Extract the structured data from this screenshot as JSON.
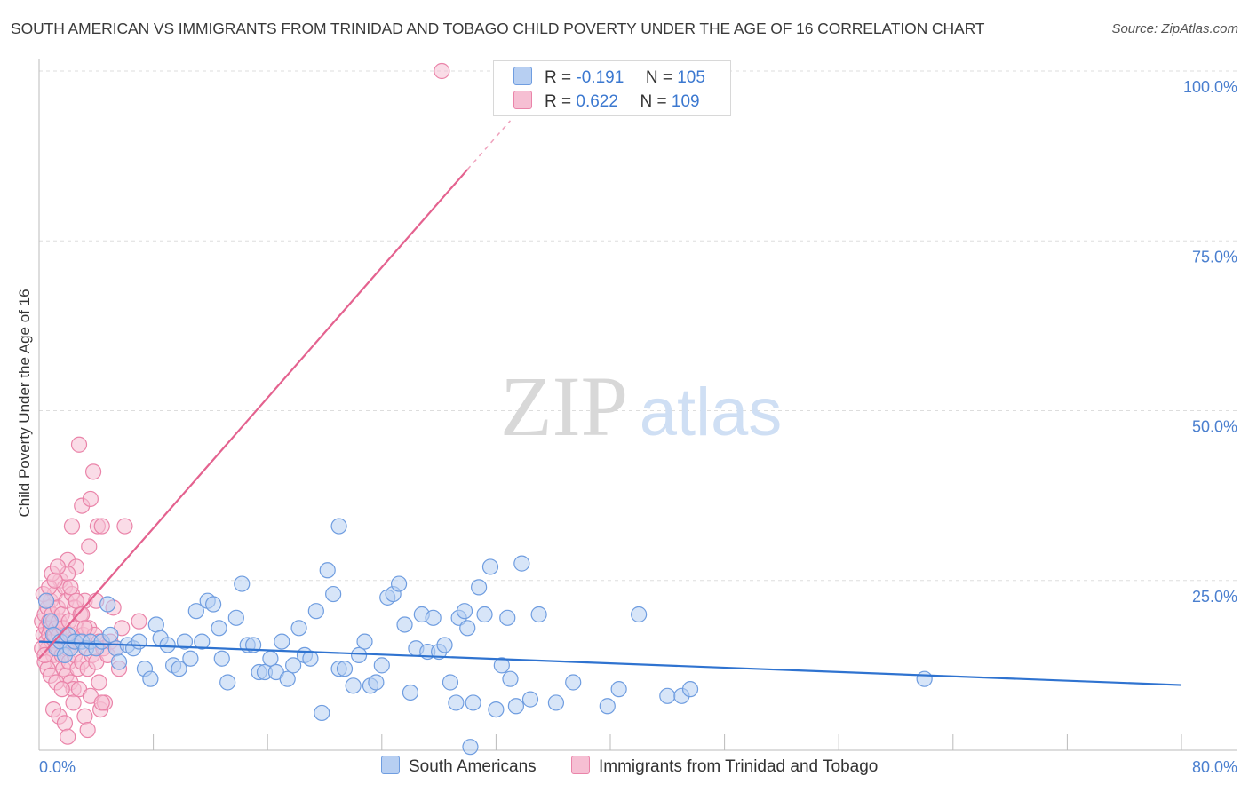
{
  "title": "SOUTH AMERICAN VS IMMIGRANTS FROM TRINIDAD AND TOBAGO CHILD POVERTY UNDER THE AGE OF 16 CORRELATION CHART",
  "source": "Source: ZipAtlas.com",
  "watermark": {
    "zip": "ZIP",
    "atlas": "atlas"
  },
  "legend": {
    "r_label": "R =",
    "n_label": "N =",
    "rows": [
      {
        "r": "-0.191",
        "n": "105"
      },
      {
        "r": "0.622",
        "n": "109"
      }
    ]
  },
  "colors": {
    "blue_fill": "#b7cff2",
    "blue_stroke": "#6f9de0",
    "blue_line": "#2f73d0",
    "pink_fill": "#f6bfd3",
    "pink_stroke": "#ea84a9",
    "pink_line": "#e4628f",
    "axis_text": "#4a7fcf",
    "grid": "#dddddd"
  },
  "chart_data": {
    "type": "scatter",
    "title": "SOUTH AMERICAN VS IMMIGRANTS FROM TRINIDAD AND TOBAGO CHILD POVERTY UNDER THE AGE OF 16 CORRELATION CHART",
    "xlabel": "",
    "ylabel": "Child Poverty Under the Age of 16",
    "xlim": [
      0,
      80
    ],
    "ylim": [
      0,
      100
    ],
    "x_tick_labels": [
      "0.0%",
      "80.0%"
    ],
    "y_ticks": [
      {
        "value": 25,
        "label": "25.0%"
      },
      {
        "value": 50,
        "label": "50.0%"
      },
      {
        "value": 75,
        "label": "75.0%"
      },
      {
        "value": 100,
        "label": "100.0%"
      }
    ],
    "series": [
      {
        "name": "South Americans",
        "r": -0.191,
        "n": 105,
        "trend": {
          "x0": 0,
          "y0": 16.0,
          "x1": 80,
          "y1": 9.6
        },
        "points": [
          [
            0.5,
            22
          ],
          [
            0.8,
            19
          ],
          [
            1.0,
            17
          ],
          [
            1.2,
            15
          ],
          [
            1.5,
            16
          ],
          [
            1.8,
            14
          ],
          [
            2.0,
            17
          ],
          [
            2.2,
            15
          ],
          [
            2.5,
            16
          ],
          [
            3.0,
            16
          ],
          [
            3.3,
            15
          ],
          [
            3.6,
            16
          ],
          [
            4.0,
            15
          ],
          [
            4.4,
            16
          ],
          [
            4.8,
            21.5
          ],
          [
            5.0,
            17
          ],
          [
            5.4,
            15
          ],
          [
            5.6,
            13
          ],
          [
            6.2,
            15.5
          ],
          [
            6.6,
            15
          ],
          [
            7.0,
            16
          ],
          [
            7.4,
            12
          ],
          [
            7.8,
            10.5
          ],
          [
            8.2,
            18.5
          ],
          [
            8.5,
            16.5
          ],
          [
            9.0,
            15.5
          ],
          [
            9.4,
            12.5
          ],
          [
            9.8,
            12
          ],
          [
            10.2,
            16
          ],
          [
            10.6,
            13.5
          ],
          [
            11.0,
            20.5
          ],
          [
            11.4,
            16
          ],
          [
            11.8,
            22
          ],
          [
            12.2,
            21.5
          ],
          [
            12.6,
            18
          ],
          [
            12.8,
            13.5
          ],
          [
            13.2,
            10
          ],
          [
            13.8,
            19.5
          ],
          [
            14.2,
            24.5
          ],
          [
            14.6,
            15.5
          ],
          [
            15.0,
            15.5
          ],
          [
            15.4,
            11.5
          ],
          [
            15.8,
            11.5
          ],
          [
            16.2,
            13.5
          ],
          [
            16.6,
            11.5
          ],
          [
            17.0,
            16
          ],
          [
            17.4,
            10.5
          ],
          [
            17.8,
            12.5
          ],
          [
            18.2,
            18
          ],
          [
            18.6,
            14
          ],
          [
            19.0,
            13.5
          ],
          [
            19.4,
            20.5
          ],
          [
            19.8,
            5.5
          ],
          [
            20.2,
            26.5
          ],
          [
            20.6,
            23
          ],
          [
            21.0,
            12
          ],
          [
            21.4,
            12
          ],
          [
            22.0,
            9.5
          ],
          [
            22.4,
            14
          ],
          [
            22.8,
            16
          ],
          [
            23.2,
            9.5
          ],
          [
            23.6,
            10
          ],
          [
            24.0,
            12.5
          ],
          [
            24.4,
            22.5
          ],
          [
            24.8,
            23
          ],
          [
            25.2,
            24.5
          ],
          [
            25.6,
            18.5
          ],
          [
            26.0,
            8.5
          ],
          [
            26.4,
            15
          ],
          [
            26.8,
            20
          ],
          [
            27.2,
            14.5
          ],
          [
            27.6,
            19.5
          ],
          [
            28.0,
            14.5
          ],
          [
            28.4,
            15.5
          ],
          [
            28.8,
            10
          ],
          [
            29.2,
            7
          ],
          [
            29.4,
            19.5
          ],
          [
            29.8,
            20.5
          ],
          [
            30.0,
            18
          ],
          [
            30.4,
            7
          ],
          [
            30.8,
            24
          ],
          [
            31.2,
            20
          ],
          [
            31.6,
            27
          ],
          [
            32.0,
            6
          ],
          [
            32.4,
            12.5
          ],
          [
            32.8,
            19.5
          ],
          [
            33.0,
            10.5
          ],
          [
            33.4,
            6.5
          ],
          [
            33.8,
            27.5
          ],
          [
            34.4,
            7.5
          ],
          [
            35.0,
            20
          ],
          [
            36.2,
            7
          ],
          [
            37.4,
            10
          ],
          [
            39.8,
            6.5
          ],
          [
            40.6,
            9
          ],
          [
            42.0,
            20
          ],
          [
            44.0,
            8
          ],
          [
            45.0,
            8
          ],
          [
            45.6,
            9
          ],
          [
            62.0,
            10.5
          ],
          [
            30.2,
            0.5
          ],
          [
            21.0,
            33
          ]
        ]
      },
      {
        "name": "Immigrants from Trinidad and Tobago",
        "r": 0.622,
        "n": 109,
        "trend": {
          "x0": 0,
          "y0": 13.5,
          "x1": 30.0,
          "y1": 85.5
        },
        "trend_dashed": {
          "x0": 30.0,
          "y0": 85.5,
          "x1": 33.0,
          "y1": 92.7
        },
        "points": [
          [
            0.2,
            19
          ],
          [
            0.3,
            17
          ],
          [
            0.4,
            20
          ],
          [
            0.5,
            18
          ],
          [
            0.5,
            16
          ],
          [
            0.6,
            21
          ],
          [
            0.6,
            15
          ],
          [
            0.7,
            19
          ],
          [
            0.7,
            17
          ],
          [
            0.8,
            22
          ],
          [
            0.8,
            18
          ],
          [
            0.9,
            16
          ],
          [
            0.9,
            20
          ],
          [
            1.0,
            14
          ],
          [
            1.0,
            19
          ],
          [
            1.1,
            17
          ],
          [
            1.1,
            23
          ],
          [
            1.2,
            18
          ],
          [
            1.2,
            15
          ],
          [
            1.3,
            21
          ],
          [
            1.3,
            13
          ],
          [
            1.4,
            17
          ],
          [
            1.4,
            19
          ],
          [
            1.5,
            16
          ],
          [
            1.5,
            25
          ],
          [
            1.6,
            20
          ],
          [
            1.6,
            14
          ],
          [
            1.7,
            12
          ],
          [
            1.7,
            18
          ],
          [
            1.8,
            24
          ],
          [
            1.8,
            16
          ],
          [
            1.9,
            22
          ],
          [
            1.9,
            11
          ],
          [
            2.0,
            28
          ],
          [
            2.0,
            15
          ],
          [
            2.1,
            19
          ],
          [
            2.1,
            13
          ],
          [
            2.2,
            17
          ],
          [
            2.2,
            10
          ],
          [
            2.3,
            23
          ],
          [
            2.3,
            33
          ],
          [
            2.4,
            16
          ],
          [
            2.4,
            9
          ],
          [
            2.5,
            21
          ],
          [
            2.5,
            14
          ],
          [
            2.6,
            27
          ],
          [
            2.6,
            18
          ],
          [
            2.7,
            12
          ],
          [
            2.8,
            16
          ],
          [
            2.8,
            45
          ],
          [
            2.9,
            20
          ],
          [
            3.0,
            13
          ],
          [
            3.0,
            36
          ],
          [
            3.1,
            17
          ],
          [
            3.2,
            22
          ],
          [
            3.2,
            5
          ],
          [
            3.3,
            15
          ],
          [
            3.4,
            12
          ],
          [
            3.5,
            18
          ],
          [
            3.5,
            30
          ],
          [
            3.6,
            37
          ],
          [
            3.7,
            14
          ],
          [
            3.8,
            41
          ],
          [
            3.9,
            17
          ],
          [
            4.0,
            22
          ],
          [
            4.0,
            13
          ],
          [
            4.1,
            33
          ],
          [
            4.2,
            16
          ],
          [
            4.3,
            6
          ],
          [
            4.4,
            33
          ],
          [
            4.5,
            15
          ],
          [
            4.6,
            7
          ],
          [
            4.8,
            14
          ],
          [
            5.0,
            16
          ],
          [
            5.2,
            21
          ],
          [
            5.4,
            15
          ],
          [
            5.6,
            12
          ],
          [
            5.8,
            18
          ],
          [
            6.0,
            33
          ],
          [
            7.0,
            19
          ],
          [
            1.0,
            6
          ],
          [
            1.4,
            5
          ],
          [
            1.8,
            4
          ],
          [
            2.0,
            2
          ],
          [
            2.4,
            7
          ],
          [
            2.8,
            9
          ],
          [
            3.4,
            3
          ],
          [
            3.6,
            8
          ],
          [
            4.2,
            10
          ],
          [
            4.4,
            7
          ],
          [
            0.4,
            13
          ],
          [
            0.6,
            12
          ],
          [
            0.8,
            11
          ],
          [
            1.2,
            10
          ],
          [
            1.6,
            9
          ],
          [
            2.0,
            26
          ],
          [
            2.2,
            24
          ],
          [
            2.6,
            22
          ],
          [
            3.0,
            20
          ],
          [
            3.2,
            18
          ],
          [
            0.3,
            23
          ],
          [
            0.5,
            22
          ],
          [
            0.7,
            24
          ],
          [
            0.9,
            26
          ],
          [
            1.1,
            25
          ],
          [
            1.3,
            27
          ],
          [
            0.2,
            15
          ],
          [
            0.4,
            14
          ],
          [
            28.2,
            100
          ]
        ]
      }
    ]
  },
  "bottom_legend": [
    {
      "label": "South Americans"
    },
    {
      "label": "Immigrants from Trinidad and Tobago"
    }
  ]
}
